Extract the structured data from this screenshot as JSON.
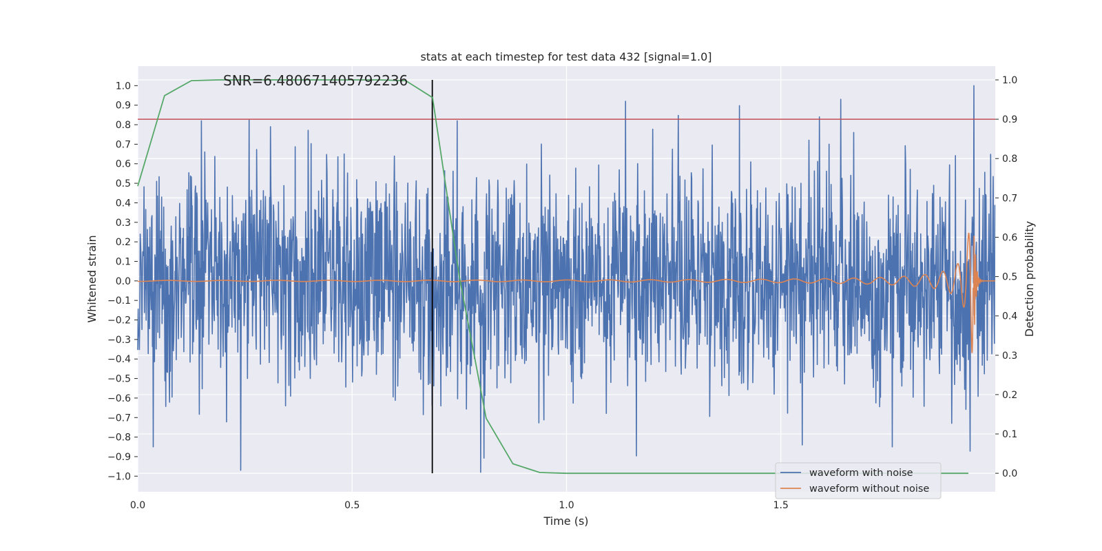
{
  "chart_data": {
    "type": "line",
    "title": "stats at each timestep for test data 432 [signal=1.0]",
    "xlabel": "Time (s)",
    "ylabel_left": "Whitened strain",
    "ylabel_right": "Detection probability",
    "xlim": [
      0.0,
      2.0
    ],
    "ylim_left": [
      -1.08,
      1.1
    ],
    "ylim_right": [
      -0.047,
      1.035
    ],
    "x_ticks": [
      "0.0",
      "0.5",
      "1.0",
      "1.5"
    ],
    "y_left_ticks": [
      "1.0",
      "0.9",
      "0.8",
      "0.7",
      "0.6",
      "0.5",
      "0.4",
      "0.3",
      "0.2",
      "0.1",
      "0.0",
      "−0.1",
      "−0.2",
      "−0.3",
      "−0.4",
      "−0.5",
      "−0.6",
      "−0.7",
      "−0.8",
      "−0.9",
      "−1.0"
    ],
    "y_right_ticks": [
      "1.0",
      "0.9",
      "0.8",
      "0.7",
      "0.6",
      "0.5",
      "0.4",
      "0.3",
      "0.2",
      "0.1",
      "0.0"
    ],
    "grid": true,
    "legend_position": "lower-right",
    "annotation": "SNR=6.480671405792236",
    "threshold": {
      "axis": "right",
      "value": 0.9,
      "color": "#c44e52"
    },
    "vertical_marker": {
      "x": 0.687,
      "color": "#000000"
    },
    "series": [
      {
        "name": "waveform with noise",
        "axis": "left",
        "color": "#4c72b0",
        "values_description": "whitened noisy strain sampled densely over 0–2 s, amplitude mostly within ±0.6 with spikes to about ±0.98",
        "peaks": [
          [
            0.148,
            0.82
          ],
          [
            0.31,
            0.79
          ],
          [
            0.745,
            0.82
          ],
          [
            1.59,
            0.84
          ],
          [
            1.64,
            0.93
          ],
          [
            1.95,
            1.0
          ],
          [
            0.24,
            -0.97
          ],
          [
            0.8,
            -0.98
          ],
          [
            1.55,
            -0.84
          ],
          [
            1.76,
            -0.85
          ]
        ]
      },
      {
        "name": "waveform without noise",
        "axis": "left",
        "color": "#dd8452",
        "values_description": "clean chirp signal: oscillation near 0 with amplitude ~0.015 growing to ~0.35 at merger near t=1.95 s, then ringdown",
        "merger_time": 1.95,
        "merger_amplitude": 0.37
      },
      {
        "name": "detection probability",
        "axis": "right",
        "color": "#55a868",
        "x": [
          0.0,
          0.0625,
          0.125,
          0.1875,
          0.25,
          0.3125,
          0.375,
          0.4375,
          0.5,
          0.5625,
          0.625,
          0.6875,
          0.75,
          0.8125,
          0.875,
          0.9375,
          1.0,
          1.0625,
          1.125,
          1.1875,
          1.25,
          1.3125,
          1.375,
          1.4375,
          1.5,
          1.5625,
          1.625,
          1.6875,
          1.75,
          1.8125,
          1.875,
          1.9375
        ],
        "y": [
          0.73,
          0.96,
          0.998,
          1.0,
          1.0,
          1.0,
          1.0,
          1.0,
          1.0,
          1.0,
          0.998,
          0.955,
          0.5,
          0.14,
          0.024,
          0.002,
          0.0,
          0.0,
          0.0,
          0.0,
          0.0,
          0.0,
          0.0,
          0.0,
          0.0,
          0.0,
          0.0,
          0.0,
          0.0,
          0.0,
          0.0,
          0.0
        ]
      }
    ]
  },
  "legend": {
    "items": [
      {
        "label": "waveform with noise",
        "color": "#4c72b0"
      },
      {
        "label": "waveform without noise",
        "color": "#dd8452"
      }
    ]
  }
}
